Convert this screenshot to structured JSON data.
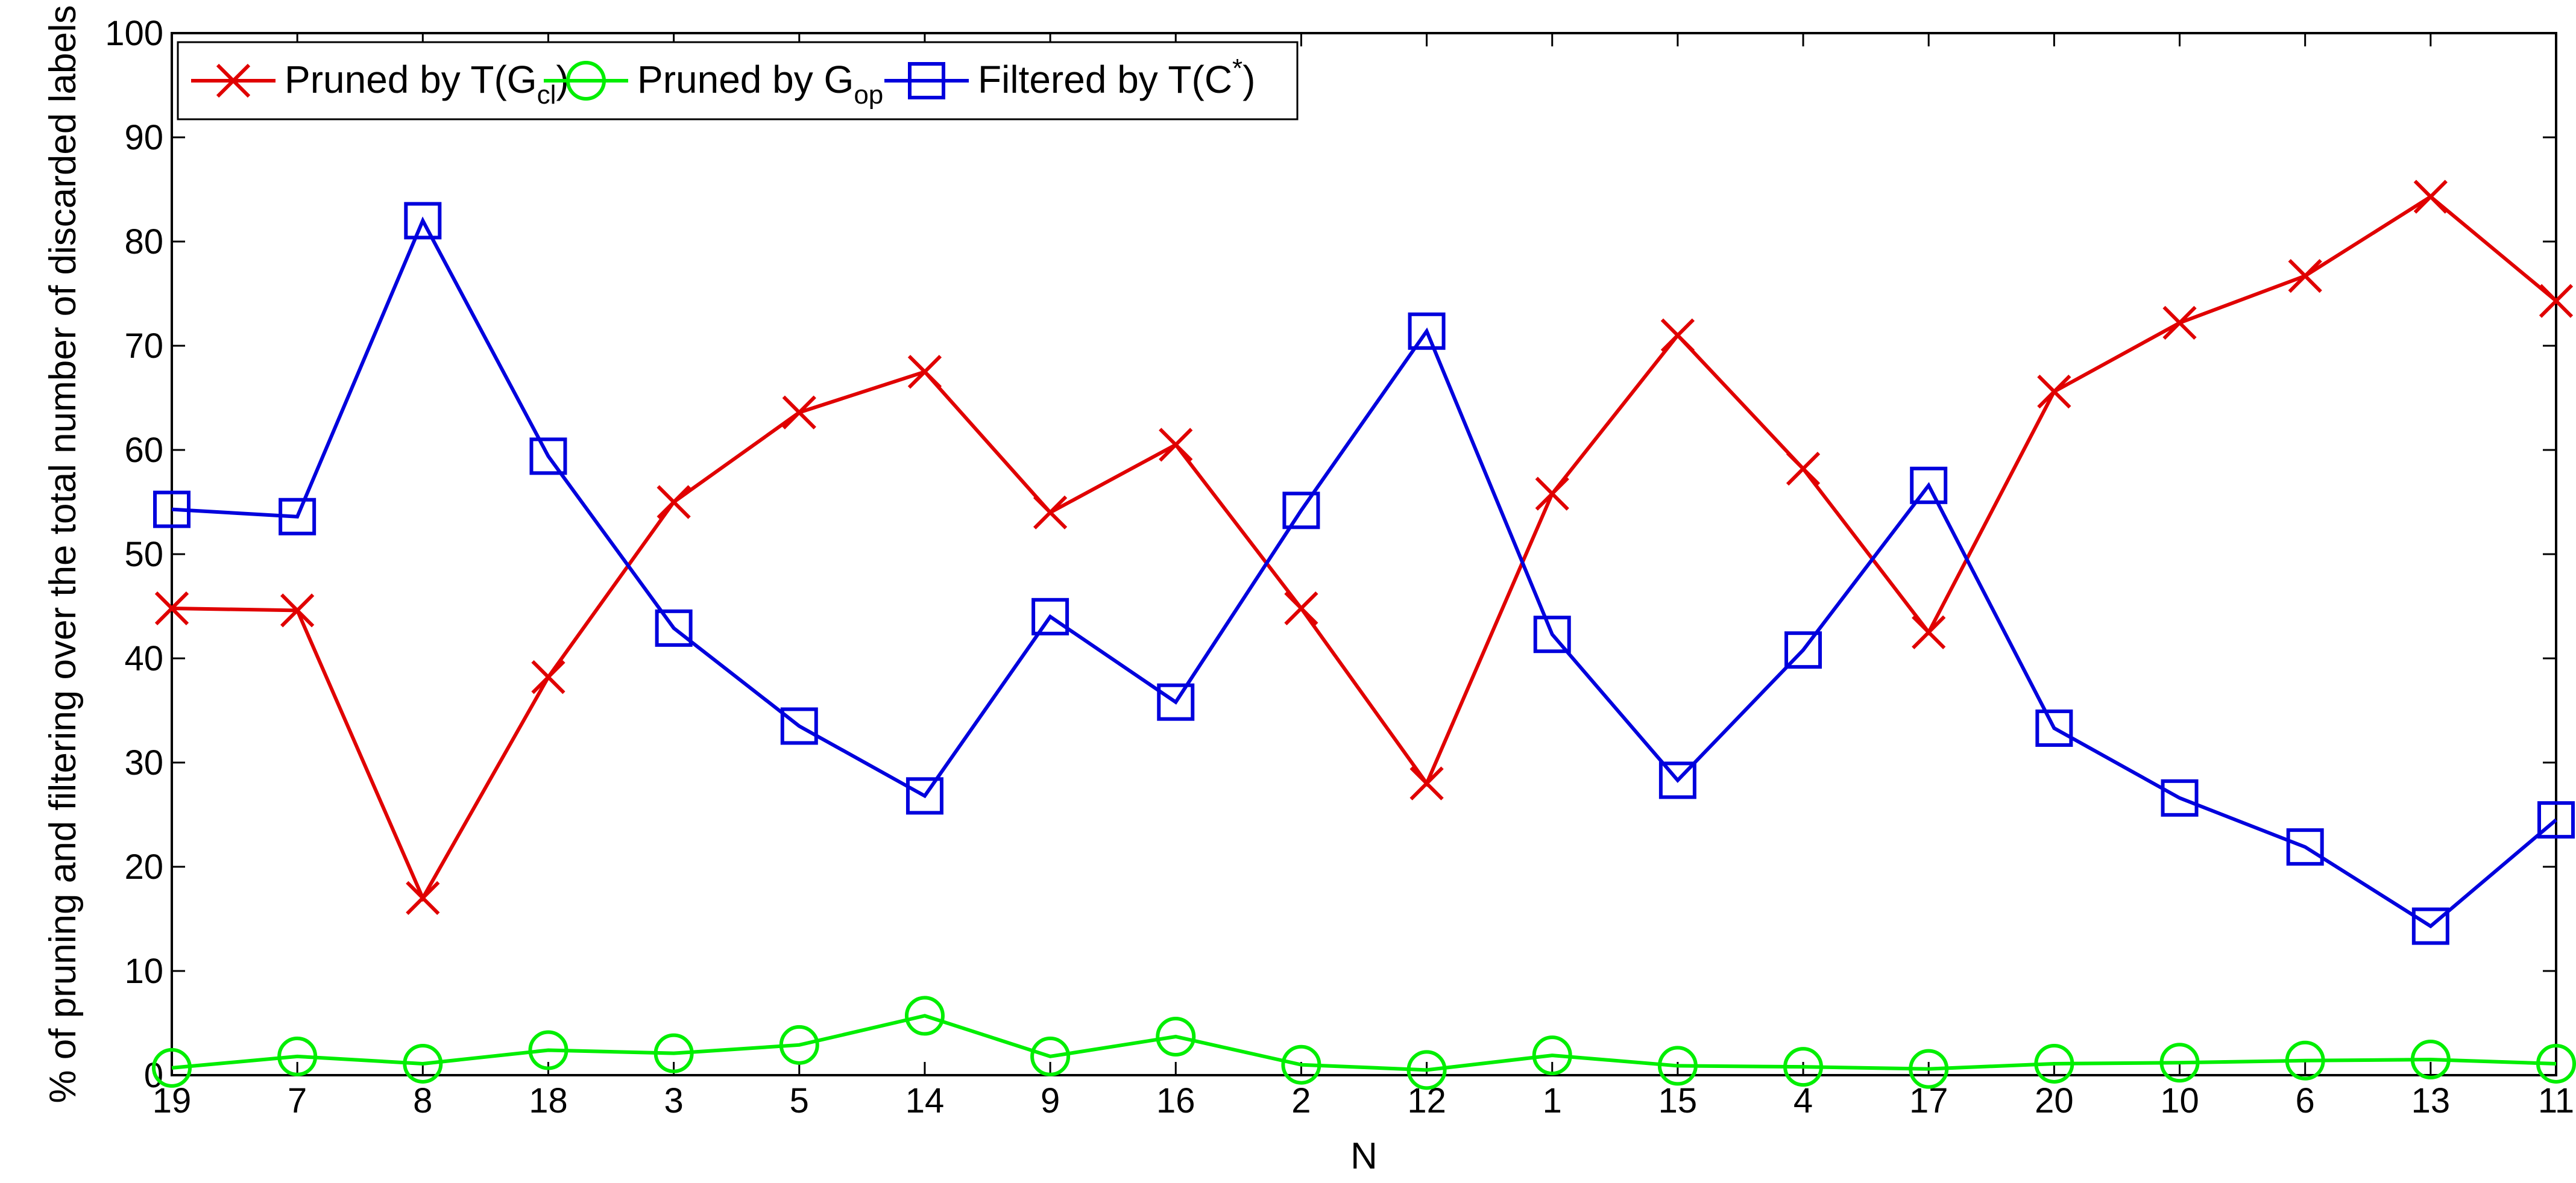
{
  "chart_data": {
    "type": "line",
    "xlabel": "N",
    "ylabel": "% of pruning and filtering over the total number of discarded labels",
    "categories": [
      "19",
      "7",
      "8",
      "18",
      "3",
      "5",
      "14",
      "9",
      "16",
      "2",
      "12",
      "1",
      "15",
      "4",
      "17",
      "20",
      "10",
      "6",
      "13",
      "11"
    ],
    "ylim": [
      0,
      100
    ],
    "yticks": [
      0,
      10,
      20,
      30,
      40,
      50,
      60,
      70,
      80,
      90,
      100
    ],
    "grid": false,
    "legend_position": "top-left",
    "series": [
      {
        "name_main": "Pruned by T(G",
        "name_sub": "cl",
        "name_end": ")",
        "color": "#e00000",
        "marker": "x",
        "values": [
          44.8,
          44.6,
          17.0,
          38.2,
          55.0,
          63.6,
          67.5,
          54.0,
          60.5,
          44.8,
          28.0,
          55.8,
          71.0,
          58.2,
          42.5,
          65.6,
          72.2,
          76.7,
          84.3,
          74.3
        ]
      },
      {
        "name_main": "Pruned by G",
        "name_sub": "op",
        "name_end": "",
        "color": "#00ee00",
        "marker": "circle",
        "values": [
          0.7,
          1.8,
          1.1,
          2.4,
          2.1,
          2.9,
          5.7,
          1.8,
          3.7,
          1.0,
          0.5,
          1.9,
          0.9,
          0.8,
          0.6,
          1.1,
          1.2,
          1.4,
          1.5,
          1.1
        ]
      },
      {
        "name_main": "Filtered by T(C",
        "name_sup": "*",
        "name_end": ")",
        "color": "#0000dd",
        "marker": "square",
        "values": [
          54.3,
          53.6,
          82.0,
          59.4,
          42.9,
          33.5,
          26.8,
          44.0,
          35.8,
          54.2,
          71.4,
          42.3,
          28.3,
          40.8,
          56.6,
          33.3,
          26.6,
          21.9,
          14.3,
          24.5
        ]
      }
    ]
  }
}
